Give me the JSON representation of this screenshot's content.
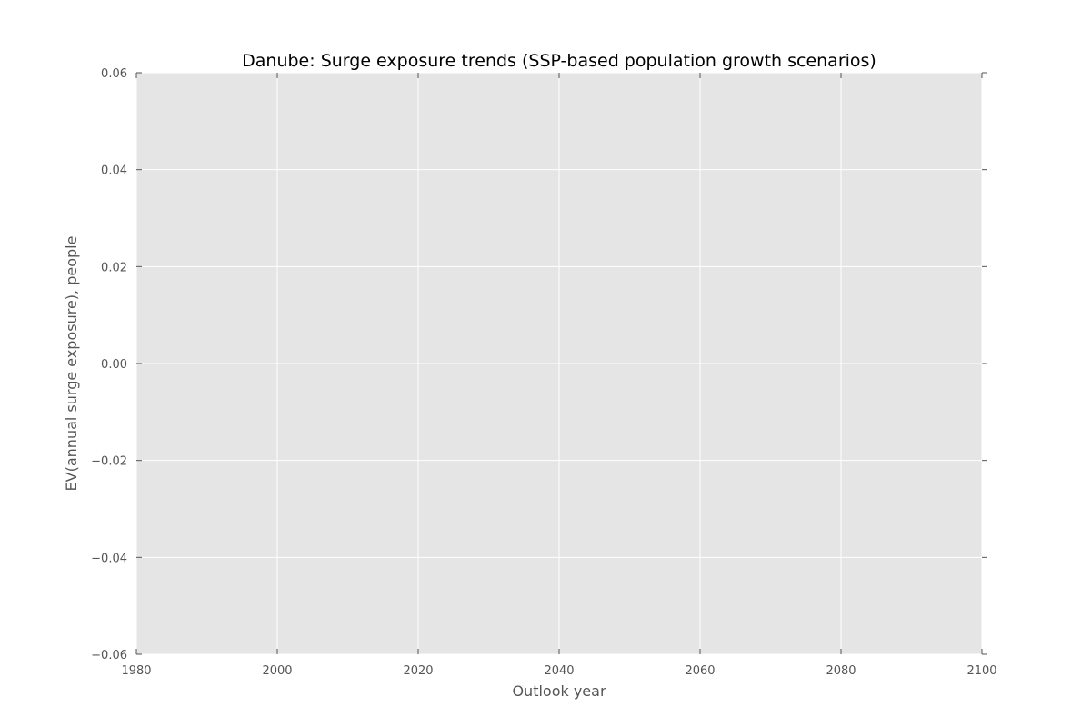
{
  "chart_data": {
    "type": "line",
    "title": "Danube: Surge exposure trends (SSP-based population growth scenarios)",
    "xlabel": "Outlook year",
    "ylabel": "EV(annual surge exposure), people",
    "xlim": [
      1980,
      2100
    ],
    "ylim": [
      -0.06,
      0.06
    ],
    "x_ticks": [
      1980,
      2000,
      2020,
      2040,
      2060,
      2080,
      2100
    ],
    "x_tick_labels": [
      "1980",
      "2000",
      "2020",
      "2040",
      "2060",
      "2080",
      "2100"
    ],
    "y_ticks": [
      0.06,
      0.04,
      0.02,
      0.0,
      -0.02,
      -0.04,
      -0.06
    ],
    "y_tick_labels": [
      "0.06",
      "0.04",
      "0.02",
      "0.00",
      "−0.02",
      "−0.04",
      "−0.06"
    ],
    "grid": true,
    "series": []
  },
  "colors": {
    "plot_background": "#e5e5e5",
    "grid": "#ffffff",
    "text": "#555555",
    "tick_marks": "#555555"
  }
}
